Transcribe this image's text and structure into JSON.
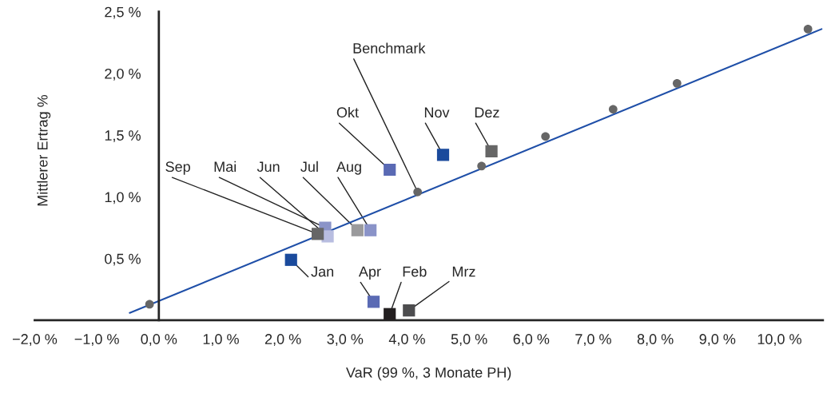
{
  "chart_data": {
    "type": "scatter",
    "xlabel": "VaR (99 %, 3 Monate PH)",
    "ylabel": "Mittlerer Ertrag %",
    "series": [
      {
        "type": "line",
        "color": "#1f4fa8",
        "marker": "none",
        "x": [
          -0.47,
          10.68
        ],
        "values": [
          0.06,
          2.36
        ]
      },
      {
        "marker": "circle",
        "color": "#666666",
        "x": [
          -0.15,
          4.17,
          5.2,
          6.23,
          7.32,
          8.35,
          10.46
        ],
        "values": [
          0.13,
          1.04,
          1.25,
          1.49,
          1.71,
          1.92,
          2.36
        ]
      },
      {
        "marker": "square",
        "x": [
          2.13,
          3.72,
          4.03,
          3.46,
          2.68,
          2.72,
          3.2,
          3.41,
          2.56,
          3.72,
          4.58,
          5.36
        ],
        "values": [
          0.49,
          0.05,
          0.08,
          0.15,
          0.75,
          0.68,
          0.73,
          0.73,
          0.7,
          1.22,
          1.34,
          1.37
        ],
        "colors": [
          "#1a4a9c",
          "#231f20",
          "#4d4d4f",
          "#5a6ab4",
          "#8a93c8",
          "#b8bde0",
          "#9a9a9c",
          "#8a93c8",
          "#666666",
          "#5a6ab4",
          "#1a4a9c",
          "#666666"
        ]
      }
    ],
    "annotations": [
      {
        "text": "Benchmark",
        "x": 4.17,
        "y": 1.04
      },
      {
        "text": "Jan",
        "x": 2.13,
        "y": 0.49
      },
      {
        "text": "Feb",
        "x": 3.72,
        "y": 0.05
      },
      {
        "text": "Mrz",
        "x": 4.03,
        "y": 0.08
      },
      {
        "text": "Apr",
        "x": 3.46,
        "y": 0.15
      },
      {
        "text": "Mai",
        "x": 2.68,
        "y": 0.75
      },
      {
        "text": "Jun",
        "x": 2.72,
        "y": 0.68
      },
      {
        "text": "Jul",
        "x": 3.2,
        "y": 0.73
      },
      {
        "text": "Aug",
        "x": 3.41,
        "y": 0.73
      },
      {
        "text": "Sep",
        "x": 2.56,
        "y": 0.7
      },
      {
        "text": "Okt",
        "x": 3.72,
        "y": 1.22
      },
      {
        "text": "Nov",
        "x": 4.58,
        "y": 1.34
      },
      {
        "text": "Dez",
        "x": 5.36,
        "y": 1.37
      }
    ],
    "xlim": [
      -2.0,
      10.7
    ],
    "ylim": [
      0,
      2.5
    ],
    "xticks": [
      {
        "value": -2,
        "label": "−2,0 %"
      },
      {
        "value": -1,
        "label": "−1,0 %"
      },
      {
        "value": 0,
        "label": "0,0 %"
      },
      {
        "value": 1,
        "label": "1,0 %"
      },
      {
        "value": 2,
        "label": "2,0 %"
      },
      {
        "value": 3,
        "label": "3,0 %"
      },
      {
        "value": 4,
        "label": "4,0 %"
      },
      {
        "value": 5,
        "label": "5,0 %"
      },
      {
        "value": 6,
        "label": "6,0 %"
      },
      {
        "value": 7,
        "label": "7,0 %"
      },
      {
        "value": 8,
        "label": "8,0 %"
      },
      {
        "value": 9,
        "label": "9,0 %"
      },
      {
        "value": 10,
        "label": "10,0 %"
      }
    ],
    "yticks": [
      {
        "value": 0.5,
        "label": "0,5 %"
      },
      {
        "value": 1,
        "label": "1,0 %"
      },
      {
        "value": 1.5,
        "label": "1,5 %"
      },
      {
        "value": 2,
        "label": "2,0 %"
      },
      {
        "value": 2.5,
        "label": "2,5 %"
      }
    ],
    "grid": false,
    "legend": false
  }
}
